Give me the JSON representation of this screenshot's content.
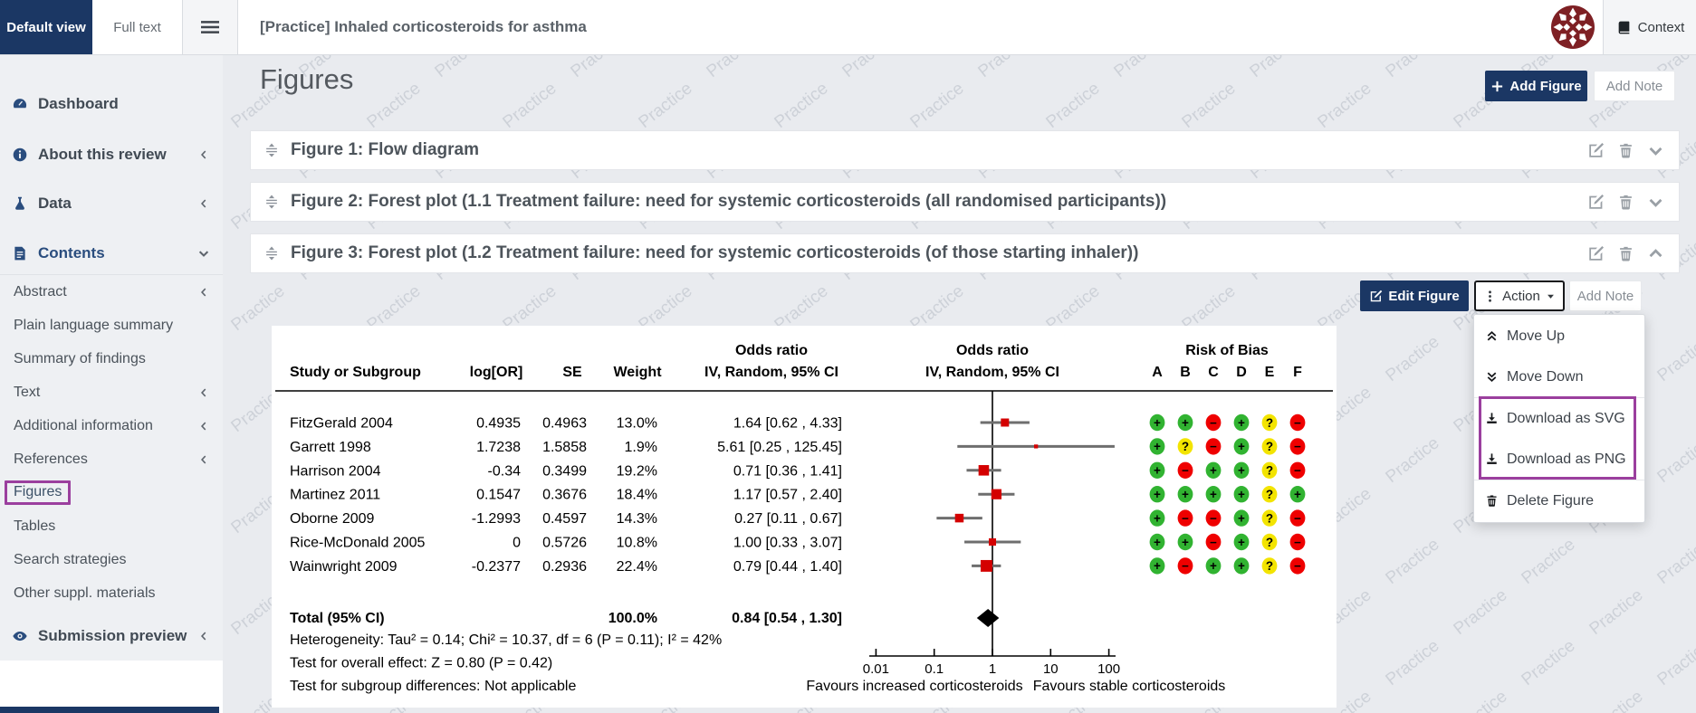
{
  "topbar": {
    "tab_default": "Default view",
    "tab_fulltext": "Full text",
    "title": "[Practice] Inhaled corticosteroids for asthma",
    "context_label": "Context"
  },
  "sidebar": {
    "items": [
      {
        "label": "Dashboard",
        "icon": "gauge-icon"
      },
      {
        "label": "About this review",
        "icon": "info-icon",
        "chevron": "left"
      },
      {
        "label": "Data",
        "icon": "flask-icon",
        "chevron": "left"
      },
      {
        "label": "Contents",
        "icon": "document-icon",
        "chevron": "down",
        "active": true
      }
    ],
    "subitems": [
      {
        "label": "Abstract",
        "chevron": "left"
      },
      {
        "label": "Plain language summary"
      },
      {
        "label": "Summary of findings"
      },
      {
        "label": "Text",
        "chevron": "left"
      },
      {
        "label": "Additional information",
        "chevron": "left"
      },
      {
        "label": "References",
        "chevron": "left"
      },
      {
        "label": "Figures",
        "highlighted": true
      },
      {
        "label": "Tables"
      },
      {
        "label": "Search strategies"
      },
      {
        "label": "Other suppl. materials"
      }
    ],
    "footer_item": {
      "label": "Submission preview",
      "icon": "eye-icon",
      "chevron": "left"
    }
  },
  "main": {
    "heading": "Figures",
    "add_figure_label": "Add Figure",
    "add_note_label": "Add Note",
    "figures": [
      {
        "title": "Figure 1: Flow diagram",
        "expanded": false
      },
      {
        "title": "Figure 2: Forest plot (1.1 Treatment failure: need for systemic corticosteroids (all randomised participants))",
        "expanded": false
      },
      {
        "title": "Figure 3: Forest plot (1.2 Treatment failure: need for systemic corticosteroids (of those starting inhaler))",
        "expanded": true
      }
    ],
    "toolbar": {
      "edit_figure": "Edit Figure",
      "action": "Action",
      "add_note": "Add Note"
    },
    "menu": {
      "move_up": "Move Up",
      "move_down": "Move Down",
      "download_svg": "Download as SVG",
      "download_png": "Download as PNG",
      "delete_figure": "Delete Figure"
    }
  },
  "watermark": "Practice",
  "colors": {
    "navy": "#1b3764",
    "purple": "#9b3f9e",
    "sidebar_bg": "#eef0f3",
    "main_bg": "#e9ebef",
    "square_red": "#d40000",
    "logo_maroon": "#7e2024"
  },
  "icons": {
    "hamburger-icon": "three bars",
    "book-icon": "book",
    "gauge-icon": "dashboard gauge",
    "info-icon": "info circle",
    "flask-icon": "lab flask",
    "document-icon": "document page",
    "eye-icon": "eye",
    "chevron-left-icon": "collapsed chevron",
    "chevron-down-icon": "expand chevron",
    "chevron-up-icon": "collapse chevron",
    "double-chevron-up-icon": "move up",
    "double-chevron-down-icon": "move down",
    "download-icon": "download arrow",
    "trash-icon": "trash can",
    "edit-icon": "pencil square",
    "plus-icon": "plus",
    "drag-handle-icon": "drag sort handle",
    "dots-vertical-icon": "kebab dots",
    "caret-down-icon": "dropdown caret"
  },
  "chart_data": {
    "type": "forest",
    "title": "Forest plot (1.2 Treatment failure: need for systemic corticosteroids (of those starting inhaler))",
    "effect_measure": "Odds ratio",
    "method": "IV, Random, 95% CI",
    "headers": {
      "study": "Study or Subgroup",
      "logor": "log[OR]",
      "se": "SE",
      "weight": "Weight",
      "or_line1": "Odds ratio",
      "or_line2": "IV, Random, 95% CI",
      "rob_line1": "Risk of Bias",
      "rob_letters": [
        "A",
        "B",
        "C",
        "D",
        "E",
        "F"
      ]
    },
    "studies": [
      {
        "name": "FitzGerald 2004",
        "logor": "0.4935",
        "se": "0.4963",
        "weight": "13.0%",
        "or": 1.64,
        "ci_low": 0.62,
        "ci_high": 4.33,
        "ci_text": "1.64 [0.62 , 4.33]",
        "rob": [
          "+",
          "+",
          "-",
          "+",
          "?",
          "-"
        ]
      },
      {
        "name": "Garrett 1998",
        "logor": "1.7238",
        "se": "1.5858",
        "weight": "1.9%",
        "or": 5.61,
        "ci_low": 0.25,
        "ci_high": 125.45,
        "ci_text": "5.61 [0.25 , 125.45]",
        "rob": [
          "+",
          "?",
          "-",
          "+",
          "?",
          "-"
        ]
      },
      {
        "name": "Harrison 2004",
        "logor": "-0.34",
        "se": "0.3499",
        "weight": "19.2%",
        "or": 0.71,
        "ci_low": 0.36,
        "ci_high": 1.41,
        "ci_text": "0.71 [0.36 , 1.41]",
        "rob": [
          "+",
          "-",
          "+",
          "+",
          "?",
          "-"
        ]
      },
      {
        "name": "Martinez 2011",
        "logor": "0.1547",
        "se": "0.3676",
        "weight": "18.4%",
        "or": 1.17,
        "ci_low": 0.57,
        "ci_high": 2.4,
        "ci_text": "1.17 [0.57 , 2.40]",
        "rob": [
          "+",
          "+",
          "+",
          "+",
          "?",
          "+"
        ]
      },
      {
        "name": "Oborne 2009",
        "logor": "-1.2993",
        "se": "0.4597",
        "weight": "14.3%",
        "or": 0.27,
        "ci_low": 0.11,
        "ci_high": 0.67,
        "ci_text": "0.27 [0.11 , 0.67]",
        "rob": [
          "+",
          "-",
          "-",
          "+",
          "?",
          "-"
        ]
      },
      {
        "name": "Rice-McDonald 2005",
        "logor": "0",
        "se": "0.5726",
        "weight": "10.8%",
        "or": 1.0,
        "ci_low": 0.33,
        "ci_high": 3.07,
        "ci_text": "1.00 [0.33 , 3.07]",
        "rob": [
          "+",
          "+",
          "-",
          "+",
          "?",
          "-"
        ]
      },
      {
        "name": "Wainwright 2009",
        "logor": "-0.2377",
        "se": "0.2936",
        "weight": "22.4%",
        "or": 0.79,
        "ci_low": 0.44,
        "ci_high": 1.4,
        "ci_text": "0.79 [0.44 , 1.40]",
        "rob": [
          "+",
          "-",
          "+",
          "+",
          "?",
          "-"
        ]
      }
    ],
    "total": {
      "label": "Total (95% CI)",
      "weight": "100.0%",
      "or": 0.84,
      "ci_low": 0.54,
      "ci_high": 1.3,
      "ci_text": "0.84 [0.54 , 1.30]"
    },
    "footnotes": [
      "Heterogeneity: Tau² = 0.14; Chi² = 10.37, df = 6 (P = 0.11); I² = 42%",
      "Test for overall effect: Z = 0.80 (P = 0.42)",
      "Test for subgroup differences: Not applicable"
    ],
    "axis": {
      "scale": "log",
      "ticks": [
        0.01,
        0.1,
        1,
        10,
        100
      ],
      "tick_labels": [
        "0.01",
        "0.1",
        "1",
        "10",
        "100"
      ]
    },
    "favours_left": "Favours increased corticosteroids",
    "favours_right": "Favours stable corticosteroids",
    "rob_colors": {
      "+": "#31b331",
      "?": "#f3e400",
      "-": "#ef0000"
    }
  }
}
